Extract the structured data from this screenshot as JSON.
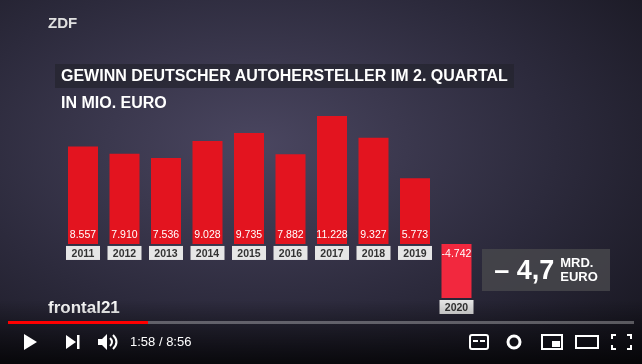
{
  "chart_data": {
    "type": "bar",
    "title": "GEWINN DEUTSCHER AUTOHERSTELLER IM 2. QUARTAL",
    "subtitle": "IN MIO. EURO",
    "categories": [
      "2011",
      "2012",
      "2013",
      "2014",
      "2015",
      "2016",
      "2017",
      "2018",
      "2019",
      "2020"
    ],
    "values": [
      8557,
      7910,
      7536,
      9028,
      9735,
      7882,
      11228,
      9327,
      5773,
      -4742
    ],
    "value_labels": [
      "8.557",
      "7.910",
      "7.536",
      "9.028",
      "9.735",
      "7.882",
      "11.228",
      "9.327",
      "5.773",
      "-4.742"
    ],
    "colors": [
      "#e3141f",
      "#e3141f",
      "#e3141f",
      "#e3141f",
      "#e3141f",
      "#e3141f",
      "#e3141f",
      "#e3141f",
      "#e3141f",
      "#f2283e"
    ],
    "data_labels": true,
    "tick_labels": "x",
    "grid": false,
    "annotations": [
      "– 4,7",
      "MRD. EURO"
    ]
  },
  "player": {
    "logo": "ZDF",
    "program": "frontal21",
    "time": "1:58 / 8:56"
  }
}
